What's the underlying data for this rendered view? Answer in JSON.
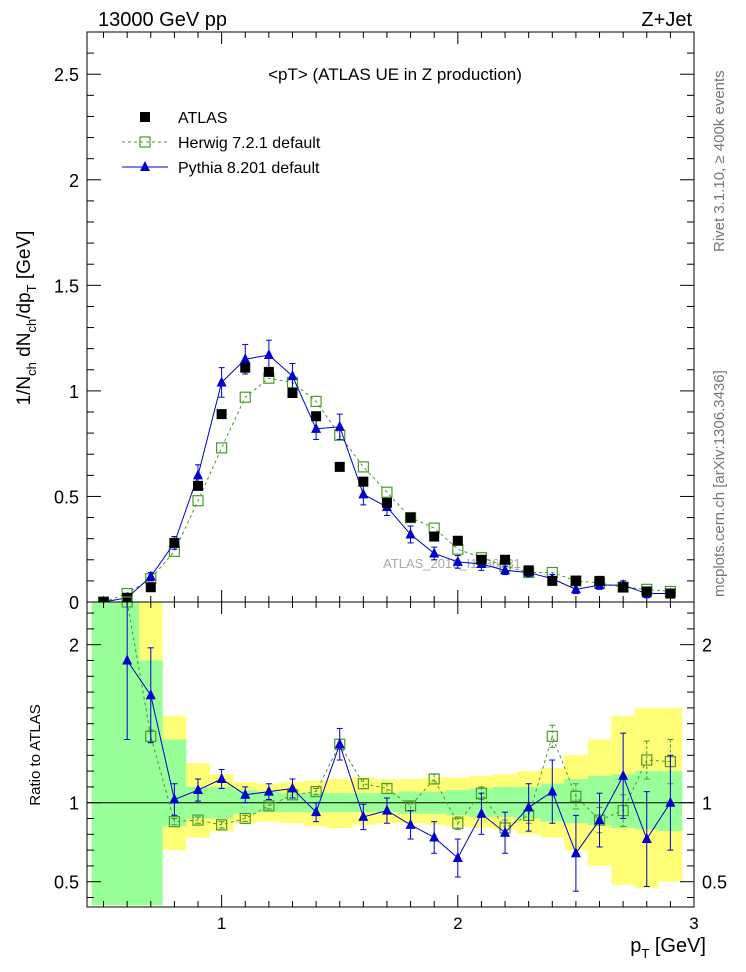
{
  "header": {
    "left": "13000 GeV pp",
    "right": "Z+Jet"
  },
  "side_text": {
    "top": "Rivet 3.1.10, ≥ 400k events",
    "bottom": "mcplots.cern.ch [arXiv:1306.3436]"
  },
  "chart_data": [
    {
      "type": "scatter",
      "title": "<pT> (ATLAS UE in Z production)",
      "ylabel": "1/N_ch dN_ch/dp_T [GeV]",
      "watermark": "ATLAS_2019_I1736531",
      "xlim": [
        0.43,
        3.0
      ],
      "ylim": [
        0,
        2.7
      ],
      "yticks": [
        "0",
        "0.5",
        "1",
        "1.5",
        "2",
        "2.5"
      ],
      "legend_position": "top-left",
      "series": [
        {
          "name": "ATLAS",
          "style": "filled-square",
          "color": "#000000",
          "x": [
            0.5,
            0.6,
            0.7,
            0.8,
            0.9,
            1.0,
            1.1,
            1.2,
            1.3,
            1.4,
            1.5,
            1.6,
            1.7,
            1.8,
            1.9,
            2.0,
            2.1,
            2.2,
            2.3,
            2.4,
            2.5,
            2.6,
            2.7,
            2.8,
            2.9
          ],
          "y": [
            0.0,
            0.02,
            0.07,
            0.28,
            0.55,
            0.89,
            1.11,
            1.09,
            0.99,
            0.88,
            0.64,
            0.57,
            0.47,
            0.4,
            0.31,
            0.29,
            0.2,
            0.2,
            0.15,
            0.1,
            0.1,
            0.1,
            0.07,
            0.05,
            0.04
          ]
        },
        {
          "name": "Herwig 7.2.1 default",
          "style": "open-square-dashed",
          "color": "#4a9b2a",
          "x": [
            0.5,
            0.6,
            0.7,
            0.8,
            0.9,
            1.0,
            1.1,
            1.2,
            1.3,
            1.4,
            1.5,
            1.6,
            1.7,
            1.8,
            1.9,
            2.0,
            2.1,
            2.2,
            2.3,
            2.4,
            2.5,
            2.6,
            2.7,
            2.8,
            2.9
          ],
          "y": [
            0.0,
            0.04,
            0.11,
            0.24,
            0.48,
            0.73,
            0.97,
            1.06,
            1.04,
            0.95,
            0.79,
            0.64,
            0.52,
            0.4,
            0.35,
            0.25,
            0.21,
            0.17,
            0.14,
            0.14,
            0.1,
            0.09,
            0.07,
            0.06,
            0.05
          ]
        },
        {
          "name": "Pythia 8.201 default",
          "style": "triangle-solid",
          "color": "#0000cc",
          "x": [
            0.5,
            0.6,
            0.7,
            0.8,
            0.9,
            1.0,
            1.1,
            1.2,
            1.3,
            1.4,
            1.5,
            1.6,
            1.7,
            1.8,
            1.9,
            2.0,
            2.1,
            2.2,
            2.3,
            2.4,
            2.5,
            2.6,
            2.7,
            2.8,
            2.9
          ],
          "y": [
            0.0,
            0.02,
            0.12,
            0.28,
            0.6,
            1.04,
            1.15,
            1.17,
            1.07,
            0.82,
            0.83,
            0.51,
            0.45,
            0.32,
            0.23,
            0.19,
            0.18,
            0.15,
            0.14,
            0.11,
            0.06,
            0.08,
            0.08,
            0.04,
            0.04
          ],
          "err": [
            0.0,
            0.01,
            0.02,
            0.03,
            0.05,
            0.07,
            0.07,
            0.07,
            0.06,
            0.05,
            0.06,
            0.05,
            0.04,
            0.04,
            0.03,
            0.03,
            0.03,
            0.02,
            0.02,
            0.02,
            0.02,
            0.02,
            0.02,
            0.02,
            0.02
          ]
        }
      ]
    },
    {
      "type": "scatter",
      "ylabel": "Ratio to ATLAS",
      "xlabel": "p_T [GeV]",
      "xlim": [
        0.43,
        3.0
      ],
      "ylim": [
        0.34,
        2.27
      ],
      "xticks": [
        "1",
        "2",
        "3"
      ],
      "yticks": [
        "0.5",
        "1",
        "2"
      ],
      "reference_line": 1,
      "bands": {
        "x_edges": [
          0.45,
          0.65,
          0.75,
          0.85,
          0.95,
          1.05,
          1.15,
          1.25,
          1.35,
          1.45,
          1.55,
          1.65,
          1.75,
          1.85,
          1.95,
          2.05,
          2.15,
          2.25,
          2.35,
          2.45,
          2.55,
          2.65,
          2.75,
          2.85,
          2.95
        ],
        "stat_color": "#99ff99",
        "syst_color": "#ffff77",
        "inner": [
          [
            0.35,
            2.3
          ],
          [
            0.35,
            1.9
          ],
          [
            0.85,
            1.4
          ],
          [
            0.9,
            1.1
          ],
          [
            0.9,
            1.1
          ],
          [
            0.93,
            1.08
          ],
          [
            0.94,
            1.07
          ],
          [
            0.94,
            1.06
          ],
          [
            0.94,
            1.06
          ],
          [
            0.94,
            1.06
          ],
          [
            0.94,
            1.06
          ],
          [
            0.94,
            1.06
          ],
          [
            0.93,
            1.07
          ],
          [
            0.93,
            1.07
          ],
          [
            0.92,
            1.08
          ],
          [
            0.91,
            1.09
          ],
          [
            0.91,
            1.1
          ],
          [
            0.9,
            1.1
          ],
          [
            0.88,
            1.12
          ],
          [
            0.87,
            1.15
          ],
          [
            0.86,
            1.17
          ],
          [
            0.84,
            1.18
          ],
          [
            0.83,
            1.2
          ],
          [
            0.82,
            1.2
          ]
        ],
        "outer": [
          [
            0.35,
            2.3
          ],
          [
            0.35,
            2.3
          ],
          [
            0.7,
            1.55
          ],
          [
            0.78,
            1.25
          ],
          [
            0.82,
            1.18
          ],
          [
            0.87,
            1.13
          ],
          [
            0.88,
            1.12
          ],
          [
            0.87,
            1.13
          ],
          [
            0.85,
            1.14
          ],
          [
            0.84,
            1.15
          ],
          [
            0.86,
            1.16
          ],
          [
            0.87,
            1.15
          ],
          [
            0.87,
            1.15
          ],
          [
            0.86,
            1.16
          ],
          [
            0.85,
            1.16
          ],
          [
            0.84,
            1.17
          ],
          [
            0.83,
            1.18
          ],
          [
            0.8,
            1.2
          ],
          [
            0.78,
            1.22
          ],
          [
            0.7,
            1.3
          ],
          [
            0.6,
            1.4
          ],
          [
            0.48,
            1.55
          ],
          [
            0.46,
            1.6
          ],
          [
            0.5,
            1.6
          ]
        ]
      },
      "series": [
        {
          "name": "Herwig 7.2.1 default",
          "style": "open-square-dashed",
          "color": "#4a9b2a",
          "x": [
            0.6,
            0.7,
            0.8,
            0.9,
            1.0,
            1.1,
            1.2,
            1.3,
            1.4,
            1.5,
            1.6,
            1.7,
            1.8,
            1.9,
            2.0,
            2.1,
            2.2,
            2.3,
            2.4,
            2.5,
            2.6,
            2.7,
            2.8,
            2.9
          ],
          "y": [
            2.3,
            1.42,
            0.88,
            0.89,
            0.86,
            0.9,
            0.98,
            1.05,
            1.07,
            1.37,
            1.12,
            1.09,
            0.98,
            1.15,
            0.87,
            1.06,
            0.84,
            0.92,
            1.42,
            1.04,
            0.89,
            0.95,
            1.27,
            1.26
          ],
          "err": [
            0.0,
            0.04,
            0.02,
            0.02,
            0.02,
            0.02,
            0.02,
            0.02,
            0.02,
            0.03,
            0.03,
            0.03,
            0.03,
            0.03,
            0.04,
            0.04,
            0.05,
            0.05,
            0.07,
            0.08,
            0.08,
            0.1,
            0.12,
            0.14
          ]
        },
        {
          "name": "Pythia 8.201 default",
          "style": "triangle-solid",
          "color": "#0000cc",
          "x": [
            0.6,
            0.7,
            0.8,
            0.9,
            1.0,
            1.1,
            1.2,
            1.3,
            1.4,
            1.5,
            1.6,
            1.7,
            1.8,
            1.9,
            2.0,
            2.1,
            2.2,
            2.3,
            2.4,
            2.5,
            2.6,
            2.7,
            2.8,
            2.9
          ],
          "y": [
            1.9,
            1.68,
            1.02,
            1.08,
            1.15,
            1.05,
            1.07,
            1.09,
            0.94,
            1.37,
            0.91,
            0.95,
            0.86,
            0.78,
            0.65,
            0.93,
            0.81,
            0.97,
            1.07,
            0.68,
            0.89,
            1.17,
            0.77,
            1.0
          ],
          "err": [
            0.5,
            0.3,
            0.1,
            0.07,
            0.06,
            0.05,
            0.05,
            0.06,
            0.06,
            0.1,
            0.08,
            0.08,
            0.09,
            0.1,
            0.12,
            0.13,
            0.13,
            0.15,
            0.2,
            0.24,
            0.17,
            0.27,
            0.3,
            0.3
          ]
        }
      ]
    }
  ]
}
